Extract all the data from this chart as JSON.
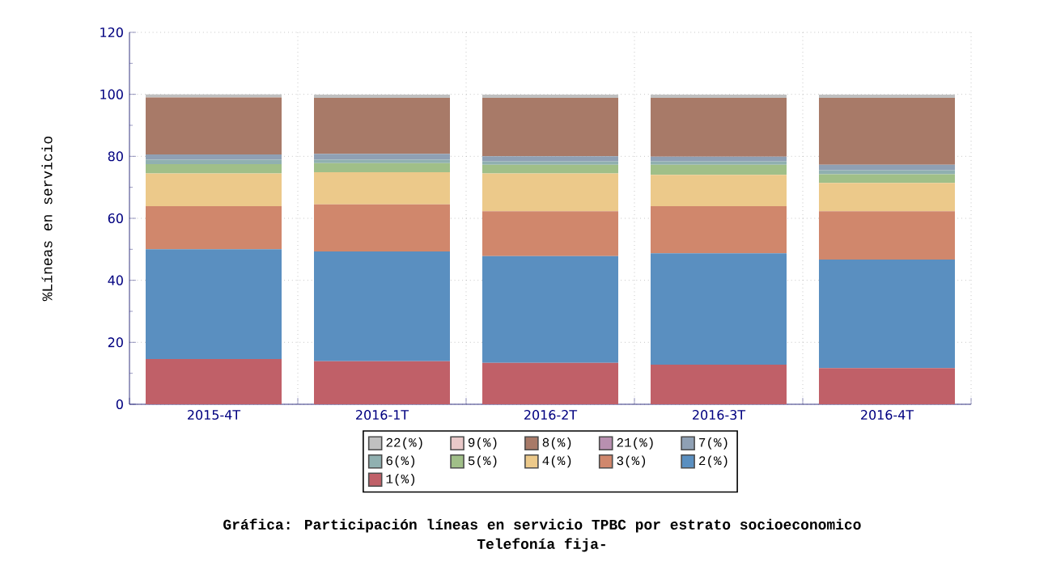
{
  "chart_data": {
    "type": "bar",
    "stacked": true,
    "title": "Gráfica: Participación líneas en servicio TPBC por estrato socioeconomico",
    "subtitle": "Telefonía fija-",
    "ylabel": "%Líneas en servicio",
    "categories": [
      "2015-4T",
      "2016-1T",
      "2016-2T",
      "2016-3T",
      "2016-4T"
    ],
    "ylim": [
      0,
      120
    ],
    "yticks": [
      0,
      20,
      40,
      60,
      80,
      100,
      120
    ],
    "grid": true,
    "legend": "bottom",
    "series": [
      {
        "name": "1(%)",
        "color": "#c06068",
        "values": [
          14.6,
          13.9,
          13.4,
          12.8,
          11.7
        ]
      },
      {
        "name": "2(%)",
        "color": "#5a8fc0",
        "values": [
          35.4,
          35.4,
          34.4,
          35.9,
          35.0
        ]
      },
      {
        "name": "3(%)",
        "color": "#d0876c",
        "values": [
          13.9,
          15.2,
          14.5,
          15.2,
          15.6
        ]
      },
      {
        "name": "4(%)",
        "color": "#ecc98a",
        "values": [
          10.6,
          10.4,
          12.2,
          10.1,
          9.1
        ]
      },
      {
        "name": "5(%)",
        "color": "#a0bf88",
        "values": [
          3.0,
          2.9,
          2.8,
          3.3,
          2.8
        ]
      },
      {
        "name": "6(%)",
        "color": "#90b0b0",
        "values": [
          1.4,
          1.1,
          1.1,
          1.1,
          1.3
        ]
      },
      {
        "name": "7(%)",
        "color": "#8fa0b4",
        "values": [
          1.7,
          1.9,
          1.6,
          1.5,
          1.8
        ]
      },
      {
        "name": "21(%)",
        "color": "#b890b0",
        "values": [
          null,
          null,
          null,
          null,
          null
        ]
      },
      {
        "name": "8(%)",
        "color": "#a87a68",
        "values": [
          18.4,
          18.1,
          18.9,
          19.0,
          21.6
        ]
      },
      {
        "name": "9(%)",
        "color": "#e8c8c8",
        "values": [
          null,
          null,
          null,
          null,
          null
        ]
      },
      {
        "name": "22(%)",
        "color": "#c0c0c0",
        "values": [
          1.0,
          1.0,
          1.0,
          1.0,
          1.0
        ]
      }
    ]
  }
}
